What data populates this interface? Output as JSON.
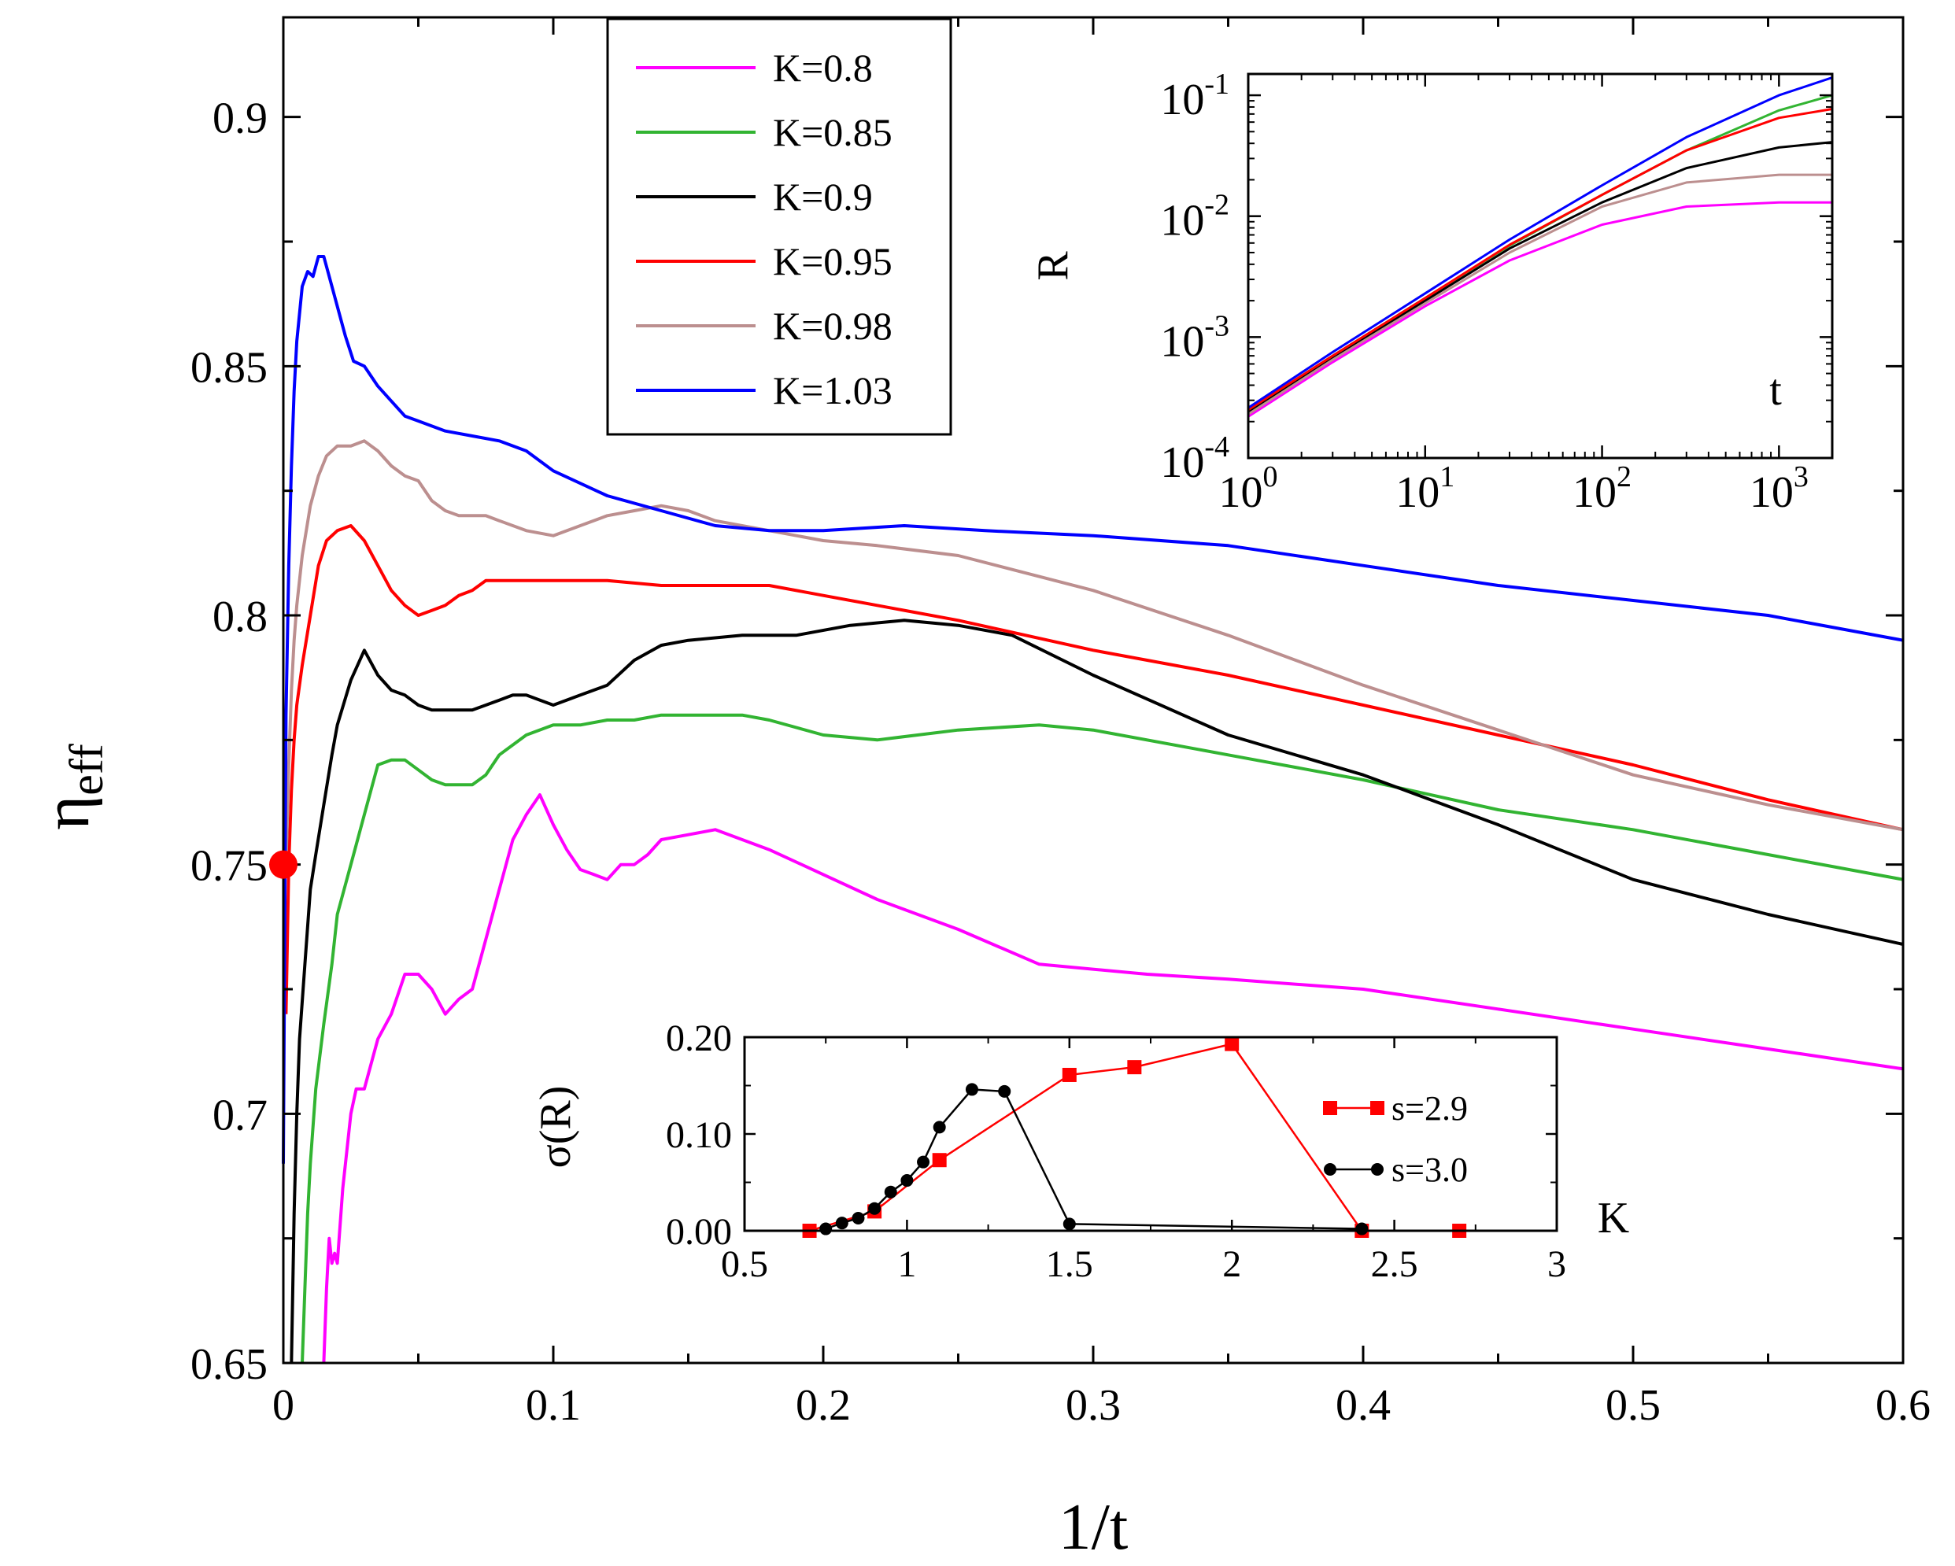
{
  "chart_data": [
    {
      "id": "main",
      "type": "line",
      "xlabel": "1/t",
      "ylabel": "η",
      "ylabel_subscript": "eff",
      "xlim": [
        0,
        0.6
      ],
      "ylim": [
        0.65,
        0.92
      ],
      "xticks": [
        "0",
        "0.1",
        "0.2",
        "0.3",
        "0.4",
        "0.5",
        "0.6"
      ],
      "yticks": [
        "0.65",
        "0.7",
        "0.75",
        "0.8",
        "0.85",
        "0.9"
      ],
      "marker": {
        "x": 0,
        "y": 0.75,
        "color": "#ff0000"
      },
      "series": [
        {
          "name": "K=0.8",
          "color": "#ff00ff",
          "x": [
            0.015,
            0.016,
            0.017,
            0.018,
            0.019,
            0.02,
            0.022,
            0.025,
            0.027,
            0.03,
            0.035,
            0.04,
            0.045,
            0.05,
            0.055,
            0.06,
            0.065,
            0.07,
            0.075,
            0.08,
            0.085,
            0.09,
            0.095,
            0.1,
            0.105,
            0.11,
            0.115,
            0.12,
            0.125,
            0.13,
            0.135,
            0.14,
            0.15,
            0.16,
            0.17,
            0.18,
            0.2,
            0.22,
            0.25,
            0.28,
            0.32,
            0.35,
            0.4,
            0.45,
            0.5,
            0.55,
            0.6
          ],
          "y": [
            0.65,
            0.665,
            0.675,
            0.67,
            0.672,
            0.67,
            0.685,
            0.7,
            0.705,
            0.705,
            0.715,
            0.72,
            0.728,
            0.728,
            0.725,
            0.72,
            0.723,
            0.725,
            0.735,
            0.745,
            0.755,
            0.76,
            0.764,
            0.758,
            0.753,
            0.749,
            0.748,
            0.747,
            0.75,
            0.75,
            0.752,
            0.755,
            0.756,
            0.757,
            0.755,
            0.753,
            0.748,
            0.743,
            0.737,
            0.73,
            0.728,
            0.727,
            0.725,
            0.721,
            0.717,
            0.713,
            0.709
          ]
        },
        {
          "name": "K=0.85",
          "color": "#32b432",
          "x": [
            0.007,
            0.008,
            0.009,
            0.01,
            0.012,
            0.015,
            0.018,
            0.02,
            0.025,
            0.03,
            0.035,
            0.04,
            0.045,
            0.05,
            0.055,
            0.06,
            0.065,
            0.07,
            0.075,
            0.08,
            0.09,
            0.1,
            0.11,
            0.12,
            0.13,
            0.14,
            0.15,
            0.16,
            0.17,
            0.18,
            0.2,
            0.22,
            0.25,
            0.28,
            0.3,
            0.35,
            0.4,
            0.45,
            0.5,
            0.55,
            0.6
          ],
          "y": [
            0.65,
            0.665,
            0.68,
            0.69,
            0.705,
            0.718,
            0.73,
            0.74,
            0.75,
            0.76,
            0.77,
            0.771,
            0.771,
            0.769,
            0.767,
            0.766,
            0.766,
            0.766,
            0.768,
            0.772,
            0.776,
            0.778,
            0.778,
            0.779,
            0.779,
            0.78,
            0.78,
            0.78,
            0.78,
            0.779,
            0.776,
            0.775,
            0.777,
            0.778,
            0.777,
            0.772,
            0.767,
            0.761,
            0.757,
            0.752,
            0.747
          ]
        },
        {
          "name": "K=0.9",
          "color": "#000000",
          "x": [
            0.003,
            0.004,
            0.005,
            0.006,
            0.008,
            0.01,
            0.012,
            0.015,
            0.018,
            0.02,
            0.025,
            0.03,
            0.035,
            0.04,
            0.045,
            0.05,
            0.055,
            0.06,
            0.065,
            0.07,
            0.075,
            0.08,
            0.085,
            0.09,
            0.1,
            0.11,
            0.12,
            0.13,
            0.14,
            0.15,
            0.17,
            0.19,
            0.21,
            0.23,
            0.25,
            0.27,
            0.3,
            0.35,
            0.4,
            0.45,
            0.5,
            0.55,
            0.6
          ],
          "y": [
            0.65,
            0.68,
            0.7,
            0.715,
            0.73,
            0.745,
            0.752,
            0.762,
            0.772,
            0.778,
            0.787,
            0.793,
            0.788,
            0.785,
            0.784,
            0.782,
            0.781,
            0.781,
            0.781,
            0.781,
            0.782,
            0.783,
            0.784,
            0.784,
            0.782,
            0.784,
            0.786,
            0.791,
            0.794,
            0.795,
            0.796,
            0.796,
            0.798,
            0.799,
            0.798,
            0.796,
            0.788,
            0.776,
            0.768,
            0.758,
            0.747,
            0.74,
            0.734
          ]
        },
        {
          "name": "K=0.95",
          "color": "#ff0000",
          "x": [
            0.001,
            0.002,
            0.003,
            0.004,
            0.005,
            0.007,
            0.01,
            0.013,
            0.016,
            0.02,
            0.025,
            0.03,
            0.035,
            0.04,
            0.045,
            0.05,
            0.055,
            0.06,
            0.065,
            0.07,
            0.075,
            0.08,
            0.09,
            0.1,
            0.12,
            0.14,
            0.16,
            0.18,
            0.2,
            0.22,
            0.25,
            0.3,
            0.35,
            0.4,
            0.45,
            0.5,
            0.55,
            0.6
          ],
          "y": [
            0.72,
            0.75,
            0.765,
            0.775,
            0.782,
            0.79,
            0.8,
            0.81,
            0.815,
            0.817,
            0.818,
            0.815,
            0.81,
            0.805,
            0.802,
            0.8,
            0.801,
            0.802,
            0.804,
            0.805,
            0.807,
            0.807,
            0.807,
            0.807,
            0.807,
            0.806,
            0.806,
            0.806,
            0.804,
            0.802,
            0.799,
            0.793,
            0.788,
            0.782,
            0.776,
            0.77,
            0.763,
            0.757
          ]
        },
        {
          "name": "K=0.98",
          "color": "#bc8f8f",
          "x": [
            0.001,
            0.002,
            0.003,
            0.004,
            0.005,
            0.007,
            0.01,
            0.013,
            0.016,
            0.02,
            0.025,
            0.03,
            0.035,
            0.04,
            0.045,
            0.05,
            0.055,
            0.06,
            0.065,
            0.07,
            0.075,
            0.08,
            0.09,
            0.1,
            0.11,
            0.12,
            0.13,
            0.14,
            0.15,
            0.16,
            0.18,
            0.2,
            0.22,
            0.25,
            0.3,
            0.35,
            0.4,
            0.45,
            0.5,
            0.55,
            0.6
          ],
          "y": [
            0.75,
            0.77,
            0.785,
            0.795,
            0.802,
            0.812,
            0.822,
            0.828,
            0.832,
            0.834,
            0.834,
            0.835,
            0.833,
            0.83,
            0.828,
            0.827,
            0.823,
            0.821,
            0.82,
            0.82,
            0.82,
            0.819,
            0.817,
            0.816,
            0.818,
            0.82,
            0.821,
            0.822,
            0.821,
            0.819,
            0.817,
            0.815,
            0.814,
            0.812,
            0.805,
            0.796,
            0.786,
            0.777,
            0.768,
            0.762,
            0.757
          ]
        },
        {
          "name": "K=1.03",
          "color": "#0000ff",
          "x": [
            0.0,
            0.001,
            0.002,
            0.003,
            0.004,
            0.005,
            0.007,
            0.009,
            0.011,
            0.013,
            0.015,
            0.017,
            0.02,
            0.023,
            0.026,
            0.03,
            0.035,
            0.04,
            0.045,
            0.05,
            0.06,
            0.07,
            0.08,
            0.09,
            0.1,
            0.12,
            0.14,
            0.16,
            0.18,
            0.2,
            0.23,
            0.26,
            0.3,
            0.35,
            0.4,
            0.45,
            0.5,
            0.55,
            0.6
          ],
          "y": [
            0.69,
            0.78,
            0.81,
            0.83,
            0.845,
            0.855,
            0.866,
            0.869,
            0.868,
            0.872,
            0.872,
            0.868,
            0.862,
            0.856,
            0.851,
            0.85,
            0.846,
            0.843,
            0.84,
            0.839,
            0.837,
            0.836,
            0.835,
            0.833,
            0.829,
            0.824,
            0.821,
            0.818,
            0.817,
            0.817,
            0.818,
            0.817,
            0.816,
            0.814,
            0.81,
            0.806,
            0.803,
            0.8,
            0.795
          ]
        }
      ],
      "legend": {
        "position": "top-center-left"
      }
    },
    {
      "id": "inset-top",
      "type": "line",
      "scale": "log-log",
      "ylabel": "R",
      "xlabel": "t",
      "xlim": [
        1,
        2000
      ],
      "ylim": [
        0.0001,
        0.15
      ],
      "xticks": [
        {
          "base": "10",
          "exp": "0"
        },
        {
          "base": "10",
          "exp": "1"
        },
        {
          "base": "10",
          "exp": "2"
        },
        {
          "base": "10",
          "exp": "3"
        }
      ],
      "yticks": [
        {
          "base": "10",
          "exp": "-4"
        },
        {
          "base": "10",
          "exp": "-3"
        },
        {
          "base": "10",
          "exp": "-2"
        },
        {
          "base": "10",
          "exp": "-1"
        }
      ],
      "series": [
        {
          "name": "K=0.8",
          "color": "#ff00ff",
          "x": [
            1,
            3,
            10,
            30,
            100,
            300,
            1000,
            2000
          ],
          "y": [
            0.00022,
            0.00062,
            0.0018,
            0.0043,
            0.0085,
            0.012,
            0.013,
            0.013
          ]
        },
        {
          "name": "K=0.85",
          "color": "#32b432",
          "x": [
            1,
            3,
            10,
            30,
            100,
            300,
            1000,
            2000
          ],
          "y": [
            0.00025,
            0.0007,
            0.0021,
            0.0057,
            0.015,
            0.035,
            0.075,
            0.1
          ]
        },
        {
          "name": "K=0.9",
          "color": "#000000",
          "x": [
            1,
            3,
            10,
            30,
            100,
            300,
            1000,
            2000
          ],
          "y": [
            0.00024,
            0.00068,
            0.002,
            0.0054,
            0.013,
            0.025,
            0.037,
            0.041
          ]
        },
        {
          "name": "K=0.95",
          "color": "#ff0000",
          "x": [
            1,
            3,
            10,
            30,
            100,
            300,
            1000,
            2000
          ],
          "y": [
            0.00025,
            0.0007,
            0.0021,
            0.0058,
            0.015,
            0.035,
            0.065,
            0.077
          ]
        },
        {
          "name": "K=0.98",
          "color": "#bc8f8f",
          "x": [
            1,
            3,
            10,
            30,
            100,
            300,
            1000,
            2000
          ],
          "y": [
            0.00023,
            0.00065,
            0.0019,
            0.005,
            0.012,
            0.019,
            0.022,
            0.022
          ]
        },
        {
          "name": "K=1.03",
          "color": "#0000ff",
          "x": [
            1,
            3,
            10,
            30,
            100,
            300,
            1000,
            2000
          ],
          "y": [
            0.00026,
            0.00075,
            0.0023,
            0.0064,
            0.018,
            0.045,
            0.1,
            0.14
          ]
        }
      ]
    },
    {
      "id": "inset-bottom",
      "type": "line",
      "ylabel": "σ(R)",
      "xlabel": "K",
      "xlim": [
        0.5,
        3
      ],
      "ylim": [
        0,
        0.2
      ],
      "xticks": [
        "0.5",
        "1",
        "1.5",
        "2",
        "2.5",
        "3"
      ],
      "yticks": [
        "0.00",
        "0.10",
        "0.20"
      ],
      "series": [
        {
          "name": "s=2.9",
          "color": "#ff0000",
          "marker": "square",
          "x": [
            0.7,
            0.9,
            1.1,
            1.5,
            1.7,
            2.0,
            2.4,
            2.7
          ],
          "y": [
            0.0,
            0.02,
            0.073,
            0.161,
            0.169,
            0.193,
            0.0,
            0.0
          ]
        },
        {
          "name": "s=3.0",
          "color": "#000000",
          "marker": "circle",
          "x": [
            0.75,
            0.8,
            0.85,
            0.9,
            0.95,
            1.0,
            1.05,
            1.1,
            1.2,
            1.3,
            1.5,
            2.4
          ],
          "y": [
            0.002,
            0.008,
            0.013,
            0.023,
            0.04,
            0.052,
            0.071,
            0.107,
            0.146,
            0.144,
            0.007,
            0.002
          ]
        }
      ]
    }
  ]
}
